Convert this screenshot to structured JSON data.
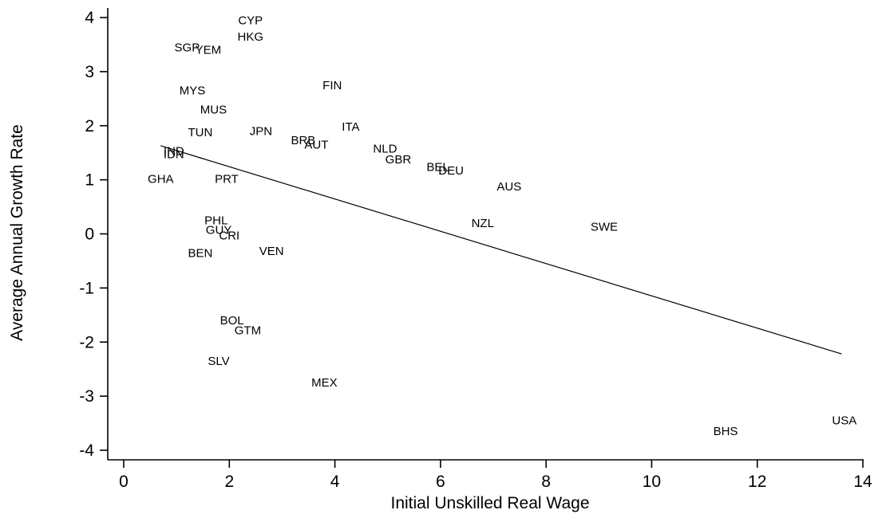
{
  "chart_data": {
    "type": "scatter",
    "xlabel": "Initial Unskilled Real Wage",
    "ylabel": "Average Annual Growth Rate",
    "xlim": [
      0,
      14
    ],
    "ylim": [
      -4,
      4
    ],
    "xticks": [
      0,
      2,
      4,
      6,
      8,
      10,
      12,
      14
    ],
    "yticks": [
      -4,
      -3,
      -2,
      -1,
      0,
      1,
      2,
      3,
      4
    ],
    "grid": false,
    "points": [
      {
        "label": "CYP",
        "x": 2.4,
        "y": 3.95
      },
      {
        "label": "HKG",
        "x": 2.4,
        "y": 3.65
      },
      {
        "label": "SGP",
        "x": 1.2,
        "y": 3.45
      },
      {
        "label": "YEM",
        "x": 1.6,
        "y": 3.4
      },
      {
        "label": "FIN",
        "x": 3.95,
        "y": 2.75
      },
      {
        "label": "MYS",
        "x": 1.3,
        "y": 2.65
      },
      {
        "label": "MUS",
        "x": 1.7,
        "y": 2.3
      },
      {
        "label": "ITA",
        "x": 4.3,
        "y": 1.98
      },
      {
        "label": "JPN",
        "x": 2.6,
        "y": 1.9
      },
      {
        "label": "TUN",
        "x": 1.45,
        "y": 1.88
      },
      {
        "label": "BRB",
        "x": 3.4,
        "y": 1.73
      },
      {
        "label": "AUT",
        "x": 3.65,
        "y": 1.65
      },
      {
        "label": "NLD",
        "x": 4.95,
        "y": 1.58
      },
      {
        "label": "IND",
        "x": 0.95,
        "y": 1.53
      },
      {
        "label": "IDN",
        "x": 0.95,
        "y": 1.47
      },
      {
        "label": "GBR",
        "x": 5.2,
        "y": 1.38
      },
      {
        "label": "BEL",
        "x": 5.95,
        "y": 1.24
      },
      {
        "label": "DEU",
        "x": 6.2,
        "y": 1.17
      },
      {
        "label": "GHA",
        "x": 0.7,
        "y": 1.02
      },
      {
        "label": "PRT",
        "x": 1.95,
        "y": 1.02
      },
      {
        "label": "AUS",
        "x": 7.3,
        "y": 0.88
      },
      {
        "label": "PHL",
        "x": 1.75,
        "y": 0.25
      },
      {
        "label": "NZL",
        "x": 6.8,
        "y": 0.2
      },
      {
        "label": "SWE",
        "x": 9.1,
        "y": 0.13
      },
      {
        "label": "GUY",
        "x": 1.8,
        "y": 0.07
      },
      {
        "label": "CRI",
        "x": 2.0,
        "y": -0.03
      },
      {
        "label": "BEN",
        "x": 1.45,
        "y": -0.35
      },
      {
        "label": "VEN",
        "x": 2.8,
        "y": -0.32
      },
      {
        "label": "BOL",
        "x": 2.05,
        "y": -1.6
      },
      {
        "label": "GTM",
        "x": 2.35,
        "y": -1.78
      },
      {
        "label": "SLV",
        "x": 1.8,
        "y": -2.35
      },
      {
        "label": "MEX",
        "x": 3.8,
        "y": -2.75
      },
      {
        "label": "BHS",
        "x": 11.4,
        "y": -3.65
      },
      {
        "label": "USA",
        "x": 13.65,
        "y": -3.45
      }
    ],
    "fit_line": {
      "x": [
        0.7,
        13.6
      ],
      "y": [
        1.63,
        -2.22
      ]
    }
  }
}
